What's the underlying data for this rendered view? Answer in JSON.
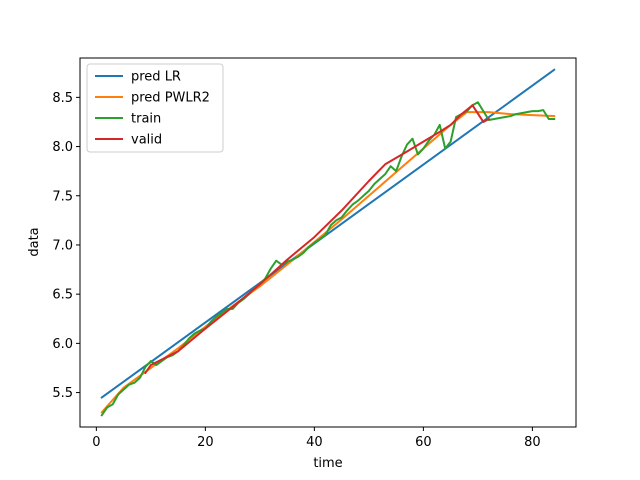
{
  "chart_data": {
    "type": "line",
    "title": "",
    "xlabel": "time",
    "ylabel": "data",
    "xlim": [
      -3,
      88
    ],
    "ylim": [
      5.15,
      8.9
    ],
    "xticks": [
      0,
      20,
      40,
      60,
      80
    ],
    "yticks": [
      5.5,
      6.0,
      6.5,
      7.0,
      7.5,
      8.0,
      8.5
    ],
    "ytick_labels": [
      "5.5",
      "6.0",
      "6.5",
      "7.0",
      "7.5",
      "8.0",
      "8.5"
    ],
    "grid": false,
    "legend_position": "upper-left",
    "series": [
      {
        "name": "pred LR",
        "color": "#1f77b4",
        "x": [
          1,
          84
        ],
        "y": [
          5.45,
          8.78
        ]
      },
      {
        "name": "pred PWLR2",
        "color": "#ff7f0e",
        "x": [
          1,
          5,
          10,
          15,
          20,
          25,
          30,
          35,
          40,
          45,
          50,
          55,
          60,
          65,
          68,
          72,
          76,
          80,
          84
        ],
        "y": [
          5.3,
          5.55,
          5.75,
          5.95,
          6.17,
          6.38,
          6.58,
          6.8,
          7.03,
          7.26,
          7.5,
          7.74,
          7.98,
          8.22,
          8.35,
          8.35,
          8.33,
          8.32,
          8.31
        ]
      },
      {
        "name": "train",
        "color": "#2ca02c",
        "x": [
          1,
          2,
          3,
          4,
          5,
          6,
          7,
          8,
          9,
          10,
          11,
          12,
          13,
          14,
          15,
          16,
          17,
          18,
          19,
          20,
          21,
          22,
          23,
          24,
          25,
          26,
          27,
          28,
          29,
          30,
          31,
          32,
          33,
          34,
          35,
          36,
          37,
          38,
          39,
          40,
          41,
          42,
          43,
          44,
          45,
          46,
          47,
          48,
          49,
          50,
          51,
          52,
          53,
          54,
          55,
          56,
          57,
          58,
          59,
          60,
          61,
          62,
          63,
          64,
          65,
          66,
          67,
          68,
          69,
          70,
          71,
          72,
          73,
          74,
          75,
          76,
          77,
          78,
          79,
          80,
          81,
          82,
          83,
          84
        ],
        "y": [
          5.27,
          5.35,
          5.38,
          5.48,
          5.53,
          5.58,
          5.6,
          5.65,
          5.76,
          5.82,
          5.78,
          5.82,
          5.86,
          5.88,
          5.92,
          5.98,
          6.05,
          6.1,
          6.13,
          6.15,
          6.22,
          6.27,
          6.31,
          6.35,
          6.35,
          6.41,
          6.45,
          6.5,
          6.56,
          6.6,
          6.66,
          6.76,
          6.84,
          6.8,
          6.83,
          6.85,
          6.88,
          6.92,
          6.98,
          7.02,
          7.06,
          7.1,
          7.2,
          7.25,
          7.28,
          7.35,
          7.41,
          7.45,
          7.5,
          7.55,
          7.62,
          7.67,
          7.72,
          7.8,
          7.75,
          7.9,
          8.02,
          8.08,
          7.92,
          7.98,
          8.06,
          8.12,
          8.22,
          7.98,
          8.05,
          8.3,
          8.33,
          8.36,
          8.42,
          8.45,
          8.36,
          8.27,
          8.28,
          8.29,
          8.3,
          8.31,
          8.33,
          8.34,
          8.35,
          8.36,
          8.36,
          8.37,
          8.28,
          8.28
        ]
      },
      {
        "name": "valid",
        "color": "#d62728",
        "x": [
          9,
          10,
          15,
          20,
          25,
          30,
          35,
          40,
          45,
          50,
          53,
          57,
          60,
          63,
          65,
          67,
          69,
          71,
          72
        ],
        "y": [
          5.7,
          5.78,
          5.92,
          6.15,
          6.37,
          6.6,
          6.85,
          7.08,
          7.35,
          7.65,
          7.82,
          7.95,
          8.05,
          8.15,
          8.22,
          8.33,
          8.42,
          8.25,
          8.28
        ]
      }
    ]
  }
}
